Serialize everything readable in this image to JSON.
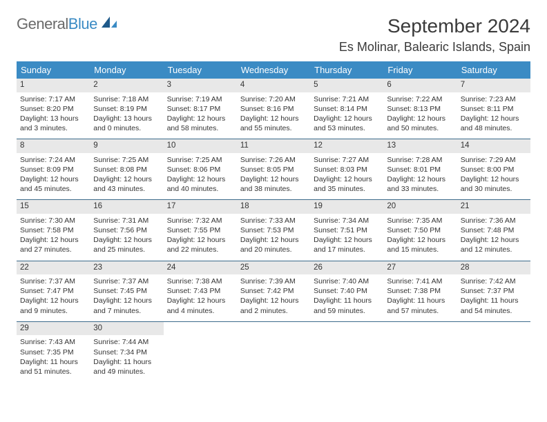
{
  "logo": {
    "text1": "General",
    "text2": "Blue"
  },
  "title": "September 2024",
  "location": "Es Molinar, Balearic Islands, Spain",
  "colors": {
    "header_bg": "#3b8bc4",
    "daynum_bg": "#e8e8e8",
    "border": "#3b6a8a"
  },
  "weekdays": [
    "Sunday",
    "Monday",
    "Tuesday",
    "Wednesday",
    "Thursday",
    "Friday",
    "Saturday"
  ],
  "weeks": [
    [
      {
        "n": "1",
        "sr": "Sunrise: 7:17 AM",
        "ss": "Sunset: 8:20 PM",
        "dl": "Daylight: 13 hours and 3 minutes."
      },
      {
        "n": "2",
        "sr": "Sunrise: 7:18 AM",
        "ss": "Sunset: 8:19 PM",
        "dl": "Daylight: 13 hours and 0 minutes."
      },
      {
        "n": "3",
        "sr": "Sunrise: 7:19 AM",
        "ss": "Sunset: 8:17 PM",
        "dl": "Daylight: 12 hours and 58 minutes."
      },
      {
        "n": "4",
        "sr": "Sunrise: 7:20 AM",
        "ss": "Sunset: 8:16 PM",
        "dl": "Daylight: 12 hours and 55 minutes."
      },
      {
        "n": "5",
        "sr": "Sunrise: 7:21 AM",
        "ss": "Sunset: 8:14 PM",
        "dl": "Daylight: 12 hours and 53 minutes."
      },
      {
        "n": "6",
        "sr": "Sunrise: 7:22 AM",
        "ss": "Sunset: 8:13 PM",
        "dl": "Daylight: 12 hours and 50 minutes."
      },
      {
        "n": "7",
        "sr": "Sunrise: 7:23 AM",
        "ss": "Sunset: 8:11 PM",
        "dl": "Daylight: 12 hours and 48 minutes."
      }
    ],
    [
      {
        "n": "8",
        "sr": "Sunrise: 7:24 AM",
        "ss": "Sunset: 8:09 PM",
        "dl": "Daylight: 12 hours and 45 minutes."
      },
      {
        "n": "9",
        "sr": "Sunrise: 7:25 AM",
        "ss": "Sunset: 8:08 PM",
        "dl": "Daylight: 12 hours and 43 minutes."
      },
      {
        "n": "10",
        "sr": "Sunrise: 7:25 AM",
        "ss": "Sunset: 8:06 PM",
        "dl": "Daylight: 12 hours and 40 minutes."
      },
      {
        "n": "11",
        "sr": "Sunrise: 7:26 AM",
        "ss": "Sunset: 8:05 PM",
        "dl": "Daylight: 12 hours and 38 minutes."
      },
      {
        "n": "12",
        "sr": "Sunrise: 7:27 AM",
        "ss": "Sunset: 8:03 PM",
        "dl": "Daylight: 12 hours and 35 minutes."
      },
      {
        "n": "13",
        "sr": "Sunrise: 7:28 AM",
        "ss": "Sunset: 8:01 PM",
        "dl": "Daylight: 12 hours and 33 minutes."
      },
      {
        "n": "14",
        "sr": "Sunrise: 7:29 AM",
        "ss": "Sunset: 8:00 PM",
        "dl": "Daylight: 12 hours and 30 minutes."
      }
    ],
    [
      {
        "n": "15",
        "sr": "Sunrise: 7:30 AM",
        "ss": "Sunset: 7:58 PM",
        "dl": "Daylight: 12 hours and 27 minutes."
      },
      {
        "n": "16",
        "sr": "Sunrise: 7:31 AM",
        "ss": "Sunset: 7:56 PM",
        "dl": "Daylight: 12 hours and 25 minutes."
      },
      {
        "n": "17",
        "sr": "Sunrise: 7:32 AM",
        "ss": "Sunset: 7:55 PM",
        "dl": "Daylight: 12 hours and 22 minutes."
      },
      {
        "n": "18",
        "sr": "Sunrise: 7:33 AM",
        "ss": "Sunset: 7:53 PM",
        "dl": "Daylight: 12 hours and 20 minutes."
      },
      {
        "n": "19",
        "sr": "Sunrise: 7:34 AM",
        "ss": "Sunset: 7:51 PM",
        "dl": "Daylight: 12 hours and 17 minutes."
      },
      {
        "n": "20",
        "sr": "Sunrise: 7:35 AM",
        "ss": "Sunset: 7:50 PM",
        "dl": "Daylight: 12 hours and 15 minutes."
      },
      {
        "n": "21",
        "sr": "Sunrise: 7:36 AM",
        "ss": "Sunset: 7:48 PM",
        "dl": "Daylight: 12 hours and 12 minutes."
      }
    ],
    [
      {
        "n": "22",
        "sr": "Sunrise: 7:37 AM",
        "ss": "Sunset: 7:47 PM",
        "dl": "Daylight: 12 hours and 9 minutes."
      },
      {
        "n": "23",
        "sr": "Sunrise: 7:37 AM",
        "ss": "Sunset: 7:45 PM",
        "dl": "Daylight: 12 hours and 7 minutes."
      },
      {
        "n": "24",
        "sr": "Sunrise: 7:38 AM",
        "ss": "Sunset: 7:43 PM",
        "dl": "Daylight: 12 hours and 4 minutes."
      },
      {
        "n": "25",
        "sr": "Sunrise: 7:39 AM",
        "ss": "Sunset: 7:42 PM",
        "dl": "Daylight: 12 hours and 2 minutes."
      },
      {
        "n": "26",
        "sr": "Sunrise: 7:40 AM",
        "ss": "Sunset: 7:40 PM",
        "dl": "Daylight: 11 hours and 59 minutes."
      },
      {
        "n": "27",
        "sr": "Sunrise: 7:41 AM",
        "ss": "Sunset: 7:38 PM",
        "dl": "Daylight: 11 hours and 57 minutes."
      },
      {
        "n": "28",
        "sr": "Sunrise: 7:42 AM",
        "ss": "Sunset: 7:37 PM",
        "dl": "Daylight: 11 hours and 54 minutes."
      }
    ],
    [
      {
        "n": "29",
        "sr": "Sunrise: 7:43 AM",
        "ss": "Sunset: 7:35 PM",
        "dl": "Daylight: 11 hours and 51 minutes."
      },
      {
        "n": "30",
        "sr": "Sunrise: 7:44 AM",
        "ss": "Sunset: 7:34 PM",
        "dl": "Daylight: 11 hours and 49 minutes."
      },
      null,
      null,
      null,
      null,
      null
    ]
  ]
}
